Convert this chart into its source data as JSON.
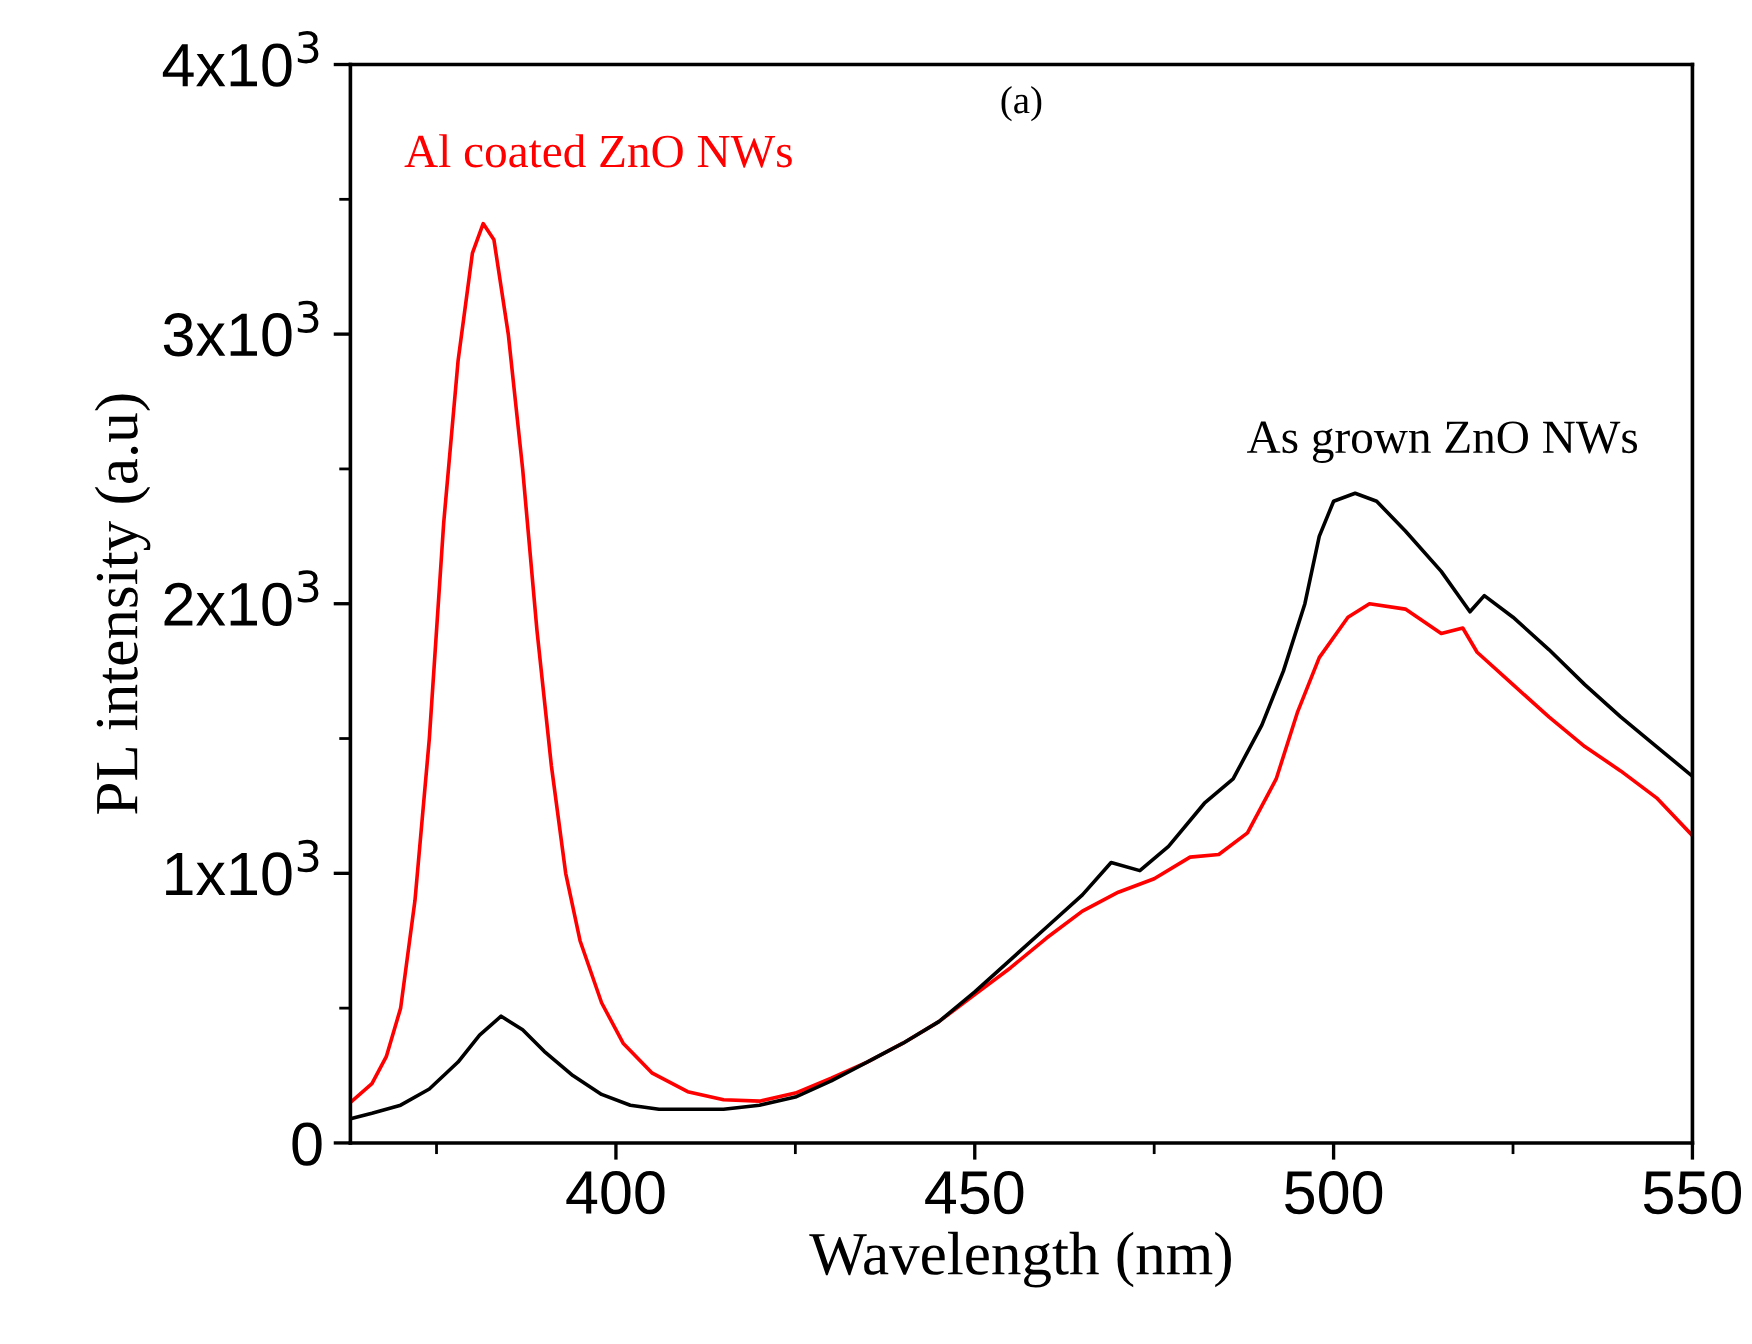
{
  "chart_data": {
    "type": "line",
    "xlabel": "Wavelength (nm)",
    "ylabel": "PL intensity (a.u)",
    "annotations": [
      "(a)"
    ],
    "xlim": [
      363,
      550
    ],
    "xticks": [
      400,
      450,
      500,
      550
    ],
    "ylim": [
      0,
      4000
    ],
    "yticks": [
      {
        "value": 0,
        "label": "0"
      },
      {
        "value": 1000,
        "label": "1x10$^{3}$"
      },
      {
        "value": 2000,
        "label": "2x10$^{3}$"
      },
      {
        "value": 3000,
        "label": "3x10$^{3}$"
      },
      {
        "value": 4000,
        "label": "4x10$^{3}$"
      }
    ],
    "grid": false,
    "legend": false,
    "marker": "none",
    "line_style": "solid",
    "series": [
      {
        "name": "Al coated ZnO NWs",
        "color": "#ff0000",
        "x": [
          363,
          366,
          368,
          370,
          372,
          374,
          376,
          378,
          380,
          381.5,
          383,
          385,
          387,
          389,
          391,
          393,
          395,
          398,
          401,
          405,
          410,
          415,
          420,
          425,
          430,
          435,
          440,
          445,
          450,
          455,
          460,
          465,
          470,
          475,
          480,
          484,
          488,
          492,
          495,
          498,
          502,
          505,
          510,
          515,
          518,
          520,
          525,
          530,
          535,
          540,
          545,
          550
        ],
        "values": [
          150,
          220,
          320,
          500,
          900,
          1500,
          2300,
          2900,
          3300,
          3410,
          3350,
          3000,
          2500,
          1900,
          1400,
          1000,
          750,
          520,
          370,
          260,
          190,
          160,
          155,
          185,
          240,
          300,
          370,
          450,
          550,
          650,
          760,
          860,
          930,
          980,
          1060,
          1070,
          1150,
          1350,
          1600,
          1800,
          1950,
          2000,
          1980,
          1890,
          1910,
          1820,
          1700,
          1580,
          1470,
          1380,
          1280,
          1140
        ]
      },
      {
        "name": "As grown ZnO NWs",
        "color": "#000000",
        "x": [
          363,
          366,
          370,
          374,
          378,
          381,
          384,
          387,
          390,
          394,
          398,
          402,
          406,
          410,
          415,
          420,
          425,
          430,
          435,
          440,
          445,
          450,
          455,
          460,
          465,
          469,
          473,
          477,
          482,
          486,
          490,
          493,
          496,
          498,
          500,
          503,
          506,
          510,
          515,
          519,
          521,
          525,
          530,
          535,
          540,
          545,
          550
        ],
        "values": [
          90,
          110,
          140,
          200,
          300,
          400,
          470,
          420,
          340,
          250,
          180,
          140,
          125,
          125,
          125,
          140,
          170,
          230,
          300,
          370,
          450,
          560,
          680,
          800,
          920,
          1040,
          1010,
          1100,
          1260,
          1350,
          1550,
          1750,
          2000,
          2250,
          2380,
          2410,
          2380,
          2270,
          2120,
          1970,
          2030,
          1950,
          1830,
          1700,
          1580,
          1470,
          1360
        ]
      }
    ]
  }
}
